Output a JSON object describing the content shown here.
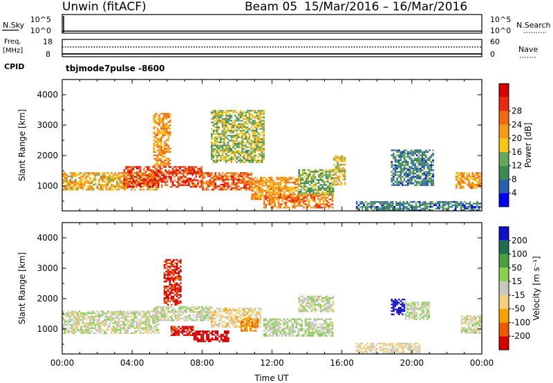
{
  "header": {
    "title": "Unwin (fitACF)",
    "beam": "Beam 05",
    "date_range": "15/Mar/2016 – 16/Mar/2016"
  },
  "top_panels": {
    "nsky_label": "N.Sky",
    "nsky_ticks": [
      "10^5",
      "10^0"
    ],
    "nsearch_ticks": [
      "10^5",
      "10^0"
    ],
    "nsearch_label": "N.Search",
    "freq_label_1": "Freq.",
    "freq_label_2": "[MHz]",
    "freq_ticks": [
      "18",
      "8"
    ],
    "nave_ticks": [
      "60",
      "0"
    ],
    "nave_label": "Nave",
    "cpid_label": "CPID",
    "cpid_value": "tbjmode7pulse -8600"
  },
  "colors": {
    "power": [
      "#0000ee",
      "#2a5fb0",
      "#3f8a4f",
      "#69a85a",
      "#f5c518",
      "#f59a1a",
      "#ef6a10",
      "#e82a10",
      "#d60000"
    ],
    "velocity": [
      "#d40000",
      "#ee5a00",
      "#f5a000",
      "#f2d080",
      "#c8c8c0",
      "#88d050",
      "#4aa040",
      "#207050",
      "#1010c8"
    ]
  },
  "chart_data": [
    {
      "type": "heatmap",
      "title": "",
      "xlabel": "",
      "ylabel": "Slant Range [km]",
      "xlim": [
        0,
        24
      ],
      "ylim": [
        180,
        4500
      ],
      "yticks": [
        1000,
        2000,
        3000,
        4000
      ],
      "colorbar": {
        "label": "Power [dB]",
        "range": [
          0,
          32
        ],
        "ticks": [
          "4",
          "8",
          "12",
          "16",
          "20",
          "24",
          "28"
        ]
      },
      "bands": [
        {
          "x": [
            0,
            5.5
          ],
          "y": [
            900,
            1450
          ],
          "value": 18
        },
        {
          "x": [
            3.5,
            8
          ],
          "y": [
            950,
            1650
          ],
          "value": 26
        },
        {
          "x": [
            8,
            10.8
          ],
          "y": [
            900,
            1450
          ],
          "value": 24
        },
        {
          "x": [
            10.8,
            13.5
          ],
          "y": [
            550,
            1300
          ],
          "value": 20
        },
        {
          "x": [
            13.5,
            15.5
          ],
          "y": [
            700,
            1550
          ],
          "value": 12
        },
        {
          "x": [
            11.5,
            15.5
          ],
          "y": [
            300,
            750
          ],
          "value": 22
        },
        {
          "x": [
            18.8,
            21.2
          ],
          "y": [
            1050,
            2200
          ],
          "value": 8
        },
        {
          "x": [
            22.5,
            24
          ],
          "y": [
            950,
            1450
          ],
          "value": 20
        },
        {
          "x": [
            5.2,
            6.2
          ],
          "y": [
            1700,
            3400
          ],
          "value": 20
        },
        {
          "x": [
            8.5,
            11.5
          ],
          "y": [
            1800,
            3500
          ],
          "value": 14
        },
        {
          "x": [
            15.5,
            16.2
          ],
          "y": [
            1050,
            2000
          ],
          "value": 16
        },
        {
          "x": [
            16.8,
            24
          ],
          "y": [
            200,
            500
          ],
          "value": 8
        }
      ]
    },
    {
      "type": "heatmap",
      "title": "",
      "xlabel": "Time UT",
      "ylabel": "Slant Range [km]",
      "xlim": [
        0,
        24
      ],
      "ylim": [
        180,
        4500
      ],
      "yticks": [
        1000,
        2000,
        3000,
        4000
      ],
      "xticks": [
        "00:00",
        "04:00",
        "08:00",
        "12:00",
        "16:00",
        "20:00",
        "00:00"
      ],
      "colorbar": {
        "label": "Velocity [m s⁻¹]",
        "range": [
          -250,
          250
        ],
        "ticks": [
          "-200",
          "-100",
          "-50",
          "-15",
          "15",
          "50",
          "100",
          "200"
        ]
      },
      "bands": [
        {
          "x": [
            0,
            5.5
          ],
          "y": [
            850,
            1600
          ],
          "value": 0
        },
        {
          "x": [
            5.2,
            8.5
          ],
          "y": [
            1300,
            1750
          ],
          "value": 5
        },
        {
          "x": [
            6.2,
            7.5
          ],
          "y": [
            800,
            1100
          ],
          "value": -220
        },
        {
          "x": [
            7.5,
            9.5
          ],
          "y": [
            600,
            950
          ],
          "value": -230
        },
        {
          "x": [
            5.8,
            6.8
          ],
          "y": [
            1800,
            3300
          ],
          "value": -210
        },
        {
          "x": [
            8.5,
            11.3
          ],
          "y": [
            1050,
            1700
          ],
          "value": -30
        },
        {
          "x": [
            10.2,
            11.2
          ],
          "y": [
            950,
            1350
          ],
          "value": -90
        },
        {
          "x": [
            11.5,
            15.5
          ],
          "y": [
            800,
            1350
          ],
          "value": 10
        },
        {
          "x": [
            13.5,
            15.5
          ],
          "y": [
            1600,
            2100
          ],
          "value": 5
        },
        {
          "x": [
            18.8,
            19.6
          ],
          "y": [
            1500,
            2000
          ],
          "value": 230
        },
        {
          "x": [
            19.6,
            21
          ],
          "y": [
            1300,
            1900
          ],
          "value": 10
        },
        {
          "x": [
            22.8,
            24
          ],
          "y": [
            850,
            1450
          ],
          "value": 0
        },
        {
          "x": [
            16.8,
            20.5
          ],
          "y": [
            200,
            550
          ],
          "value": -20
        }
      ]
    }
  ]
}
